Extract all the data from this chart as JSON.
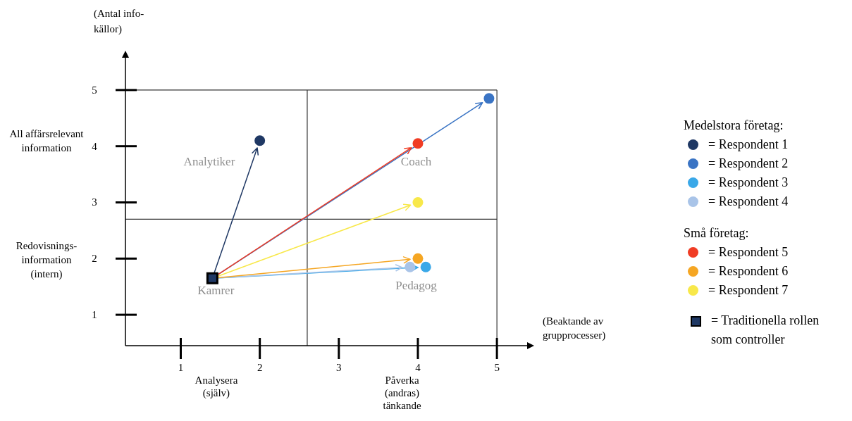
{
  "chart_data": {
    "type": "scatter",
    "xlabel": "(Beaktande av grupprocesser)",
    "ylabel": "(Antal info-källor)",
    "xlim": [
      0.3,
      5.4
    ],
    "ylim": [
      0.45,
      5.6
    ],
    "xticks": [
      1,
      2,
      3,
      4,
      5
    ],
    "yticks": [
      1,
      2,
      3,
      4,
      5
    ],
    "grid": false,
    "legend": "right",
    "marker": "circle",
    "series": [
      {
        "name": "= Traditionella rollen som controller",
        "color": "#000000",
        "marker": "square",
        "x": [
          1.4
        ],
        "values": [
          1.65
        ]
      },
      {
        "name": "= Respondent 1",
        "color": "#1f3864",
        "x": [
          2.0
        ],
        "values": [
          4.1
        ]
      },
      {
        "name": "= Respondent 2",
        "color": "#3a74c4",
        "x": [
          4.9
        ],
        "values": [
          4.85
        ]
      },
      {
        "name": "= Respondent 3",
        "color": "#3aa8e8",
        "x": [
          4.1
        ],
        "values": [
          1.85
        ]
      },
      {
        "name": "= Respondent 4",
        "color": "#a9c4e8",
        "x": [
          3.9
        ],
        "values": [
          1.85
        ]
      },
      {
        "name": "= Respondent 5",
        "color": "#f03c24",
        "x": [
          4.0
        ],
        "values": [
          4.05
        ]
      },
      {
        "name": "= Respondent 6",
        "color": "#f5a623",
        "x": [
          4.0
        ],
        "values": [
          2.0
        ]
      },
      {
        "name": "= Respondent 7",
        "color": "#f8e84a",
        "x": [
          4.0
        ],
        "values": [
          3.0
        ]
      }
    ],
    "ref_lines": [
      {
        "axis": "x",
        "value": 2.6
      },
      {
        "axis": "y",
        "value": 2.7
      },
      {
        "axis": "x",
        "value": 5
      },
      {
        "axis": "y",
        "value": 5
      }
    ],
    "annotations": [
      "Analytiker",
      "Coach",
      {
        "text": "Kamrer",
        "x": 1.4,
        "y": 1.65
      },
      "Pedagog",
      "All affärsrelevant information",
      "Redovisnings-information (intern)",
      "Analysera (själv)",
      "Påverka (andras) tänkande",
      "Medelstora företag:",
      "Små företag:"
    ]
  }
}
